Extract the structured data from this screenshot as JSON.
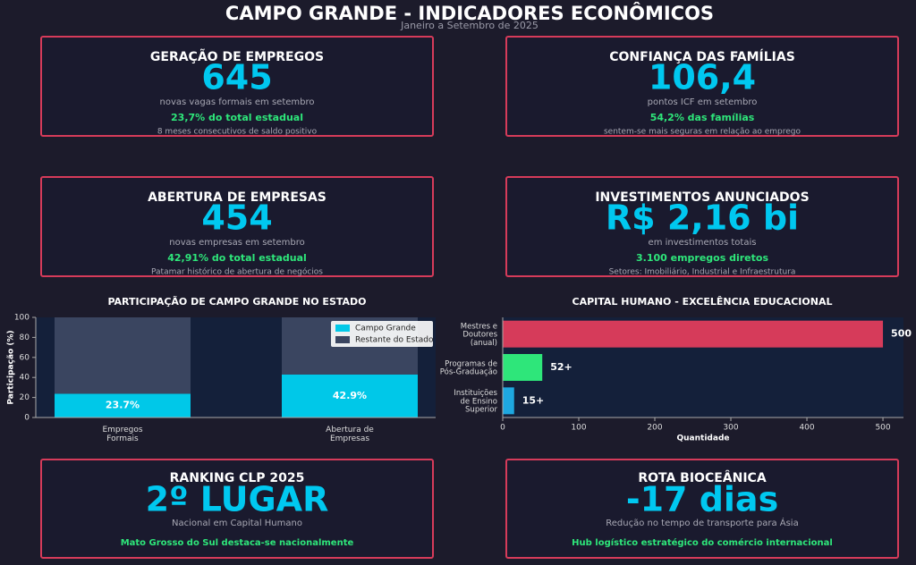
{
  "header": {
    "title": "CAMPO GRANDE - INDICADORES ECONÔMICOS",
    "subtitle": "Janeiro a Setembro de 2025"
  },
  "cards": [
    {
      "title": "GERAÇÃO DE EMPREGOS",
      "value": "645",
      "desc": "novas vagas formais em setembro",
      "highlight": "23,7% do total estadual",
      "note": "8 meses consecutivos de saldo positivo"
    },
    {
      "title": "CONFIANÇA DAS FAMÍLIAS",
      "value": "106,4",
      "desc": "pontos ICF em setembro",
      "highlight": "54,2% das famílias",
      "note": "sentem-se mais seguras em relação ao emprego"
    },
    {
      "title": "ABERTURA DE EMPRESAS",
      "value": "454",
      "desc": "novas empresas em setembro",
      "highlight": "42,91% do total estadual",
      "note": "Patamar histórico de abertura de negócios"
    },
    {
      "title": "INVESTIMENTOS ANUNCIADOS",
      "value": "R$ 2,16 bi",
      "desc": "em investimentos totais",
      "highlight": "3.100 empregos diretos",
      "note": "Setores: Imobiliário, Industrial e Infraestrutura"
    },
    {
      "title": "RANKING CLP 2025",
      "value": "2º LUGAR",
      "desc": "Nacional em Capital Humano",
      "highlight": "Mato Grosso do Sul destaca-se nacionalmente"
    },
    {
      "title": "ROTA BIOCEÂNICA",
      "value": "-17 dias",
      "desc": "Redução no tempo de transporte para Ásia",
      "highlight": "Hub logístico estratégico do comércio internacional"
    }
  ],
  "chart_data": [
    {
      "type": "stacked-bar",
      "title": "PARTICIPAÇÃO DE CAMPO GRANDE NO ESTADO",
      "ylabel": "Participação (%)",
      "categories": [
        "Empregos\nFormais",
        "Abertura de\nEmpresas"
      ],
      "series": [
        {
          "name": "Campo Grande",
          "color": "#00c8e8",
          "values": [
            23.7,
            42.9
          ],
          "value_labels": [
            "23.7%",
            "42.9%"
          ]
        },
        {
          "name": "Restante do Estado",
          "color": "#3a4560",
          "values": [
            76.3,
            57.1
          ]
        }
      ],
      "ylim": [
        0,
        100
      ],
      "yticks": [
        0,
        20,
        40,
        60,
        80,
        100
      ],
      "legend": "upper-right"
    },
    {
      "type": "hbar",
      "title": "CAPITAL HUMANO - EXCELÊNCIA EDUCACIONAL",
      "xlabel": "Quantidade",
      "categories": [
        "Mestres e\nDoutores\n(anual)",
        "Programas de\nPós-Graduação",
        "Instituições\nde Ensino\nSuperior"
      ],
      "values": [
        500,
        52,
        15
      ],
      "value_labels": [
        "500",
        "52+",
        "15+"
      ],
      "colors": [
        "#d63b5a",
        "#2ee67a",
        "#1ea8e0"
      ],
      "xlim": [
        0,
        527
      ],
      "xticks": [
        0,
        100,
        200,
        300,
        400,
        500
      ]
    }
  ]
}
